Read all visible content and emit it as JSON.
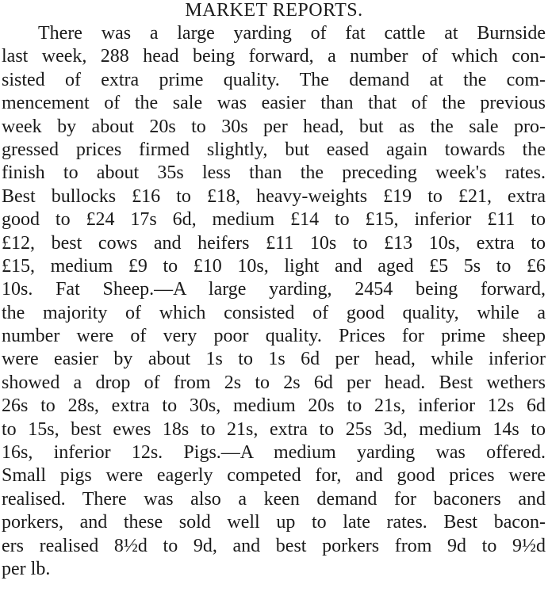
{
  "article": {
    "title": "MARKET REPORTS.",
    "lines": [
      "There was a large yarding of fat cattle at Burnside",
      "last week, 288 head being forward, a number of which con-",
      "sisted of extra prime quality. The demand at the com-",
      "mencement of the sale was easier than that of the previous",
      "week by about 20s to 30s per head, but as the sale pro-",
      "gressed prices firmed slightly, but eased again towards the",
      "finish to about 35s less than the preceding week's rates.",
      "Best bullocks £16 to £18, heavy-weights £19 to £21, extra",
      "good to £24 17s 6d, medium £14 to £15, inferior £11 to",
      "£12, best cows and heifers £11 10s to £13 10s, extra to",
      "£15, medium £9 to £10 10s, light and aged £5 5s to £6",
      "10s. Fat Sheep.—A large yarding, 2454 being forward,",
      "the majority of which consisted of good quality, while a",
      "number were of very poor quality. Prices for prime sheep",
      "were easier by about 1s to 1s 6d per head, while inferior",
      "showed a drop of from 2s to 2s 6d per head. Best wethers",
      "26s to 28s, extra to 30s, medium 20s to 21s, inferior 12s 6d",
      "to 15s, best ewes 18s to 21s, extra to 25s 3d, medium 14s to",
      "16s, inferior 12s. Pigs.—A medium yarding was offered.",
      "Small pigs were eagerly competed for, and good prices were",
      "realised. There was also a keen demand for baconers and",
      "porkers, and these sold well up to late rates. Best bacon-",
      "ers realised 8½d to 9d, and best porkers from 9d to 9½d",
      "per lb."
    ]
  }
}
